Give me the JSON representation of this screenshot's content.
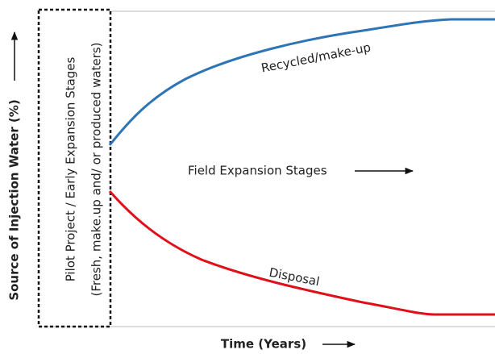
{
  "y_axis_label": "Source of Injection Water (%)",
  "x_axis_label": "Time (Years)",
  "box_text": [
    "Pilot Project / Early Expansion Stages",
    "(Fresh, make.up and/ or produced waters)"
  ],
  "curves": [
    {
      "label": "Recycled/make-up"
    },
    {
      "label": "Disposal"
    }
  ],
  "annotation": "Field Expansion Stages"
}
